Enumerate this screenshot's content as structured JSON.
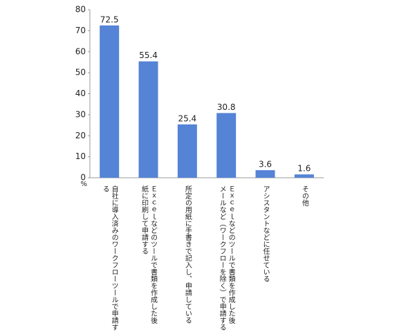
{
  "chart_data": {
    "type": "bar",
    "categories": [
      "自社に導入済みのワークフローツールで申請する",
      "Ｅｘｃｅｌなどのツールで書類を作成した後\n紙に印刷して申請する",
      "所定の用紙に手書きで記入し、申請している",
      "Ｅｘｃｅｌなどのツールで書類を作成した後\nメールなど（ワークフローを除く）で申請する",
      "アシスタントなどに任せている",
      "その他"
    ],
    "values": [
      72.5,
      55.4,
      25.4,
      30.8,
      3.6,
      1.6
    ],
    "color": "#5583d5",
    "y_unit": "%",
    "ylim": [
      0,
      80
    ],
    "yticks": [
      0,
      10,
      20,
      30,
      40,
      50,
      60,
      70,
      80
    ],
    "grid": false
  }
}
